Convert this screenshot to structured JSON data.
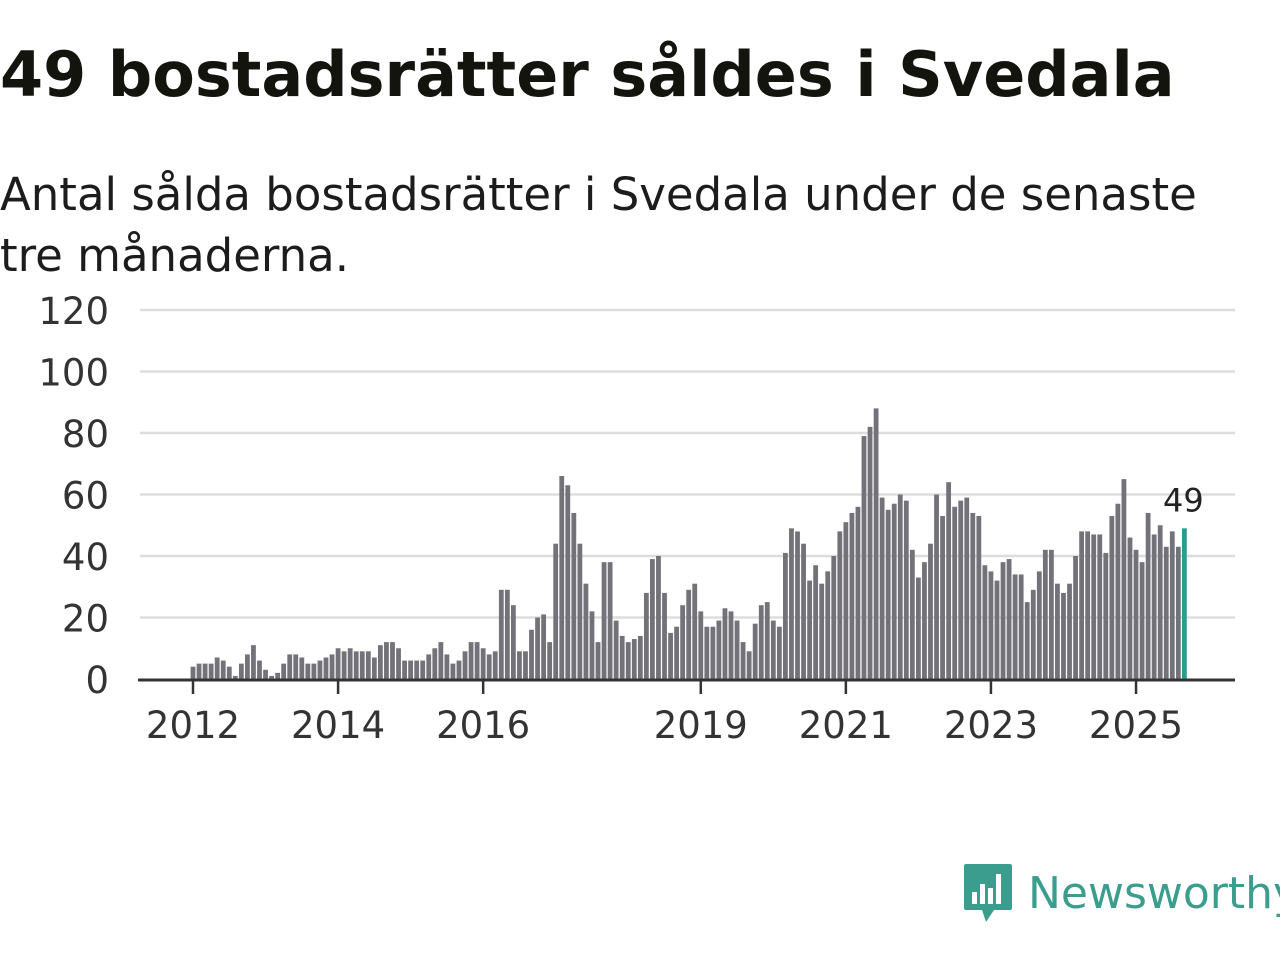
{
  "header": {
    "title": "49 bostadsrätter såldes i Svedala",
    "subtitle": "Antal sålda bostadsrätter i Svedala under de senaste tre månaderna."
  },
  "brand": {
    "name": "Newsworthy"
  },
  "colors": {
    "bar": "#737279",
    "highlight": "#2a9d8f",
    "grid": "#dddddd",
    "axis": "#333333",
    "brand": "#3a9d8e"
  },
  "chart_data": {
    "type": "bar",
    "title": "49 bostadsrätter såldes i Svedala",
    "xlabel": "",
    "ylabel": "",
    "ylim": [
      0,
      120
    ],
    "yticks": [
      0,
      20,
      40,
      60,
      80,
      100,
      120
    ],
    "xticks": [
      {
        "label": "2012",
        "index": 0
      },
      {
        "label": "2014",
        "index": 24
      },
      {
        "label": "2016",
        "index": 48
      },
      {
        "label": "2019",
        "index": 84
      },
      {
        "label": "2021",
        "index": 108
      },
      {
        "label": "2023",
        "index": 132
      },
      {
        "label": "2025",
        "index": 156
      }
    ],
    "start": "2012-01",
    "highlight_label": "49",
    "values": [
      4,
      5,
      5,
      5,
      7,
      6,
      4,
      1,
      5,
      8,
      11,
      6,
      3,
      1,
      2,
      5,
      8,
      8,
      7,
      5,
      5,
      6,
      7,
      8,
      10,
      9,
      10,
      9,
      9,
      9,
      7,
      11,
      12,
      12,
      10,
      6,
      6,
      6,
      6,
      8,
      10,
      12,
      8,
      5,
      6,
      9,
      12,
      12,
      10,
      8,
      9,
      29,
      29,
      24,
      9,
      9,
      16,
      20,
      21,
      12,
      44,
      66,
      63,
      54,
      44,
      31,
      22,
      12,
      38,
      38,
      19,
      14,
      12,
      13,
      14,
      28,
      39,
      40,
      28,
      15,
      17,
      24,
      29,
      31,
      22,
      17,
      17,
      19,
      23,
      22,
      19,
      12,
      9,
      18,
      24,
      25,
      19,
      17,
      41,
      49,
      48,
      44,
      32,
      37,
      31,
      35,
      40,
      48,
      51,
      54,
      56,
      79,
      82,
      88,
      59,
      55,
      57,
      60,
      58,
      42,
      33,
      38,
      44,
      60,
      53,
      64,
      56,
      58,
      59,
      54,
      53,
      37,
      35,
      32,
      38,
      39,
      34,
      34,
      25,
      29,
      35,
      42,
      42,
      31,
      28,
      31,
      40,
      48,
      48,
      47,
      47,
      41,
      53,
      57,
      65,
      46,
      42,
      38,
      54,
      47,
      50,
      43,
      48,
      43,
      49
    ]
  }
}
